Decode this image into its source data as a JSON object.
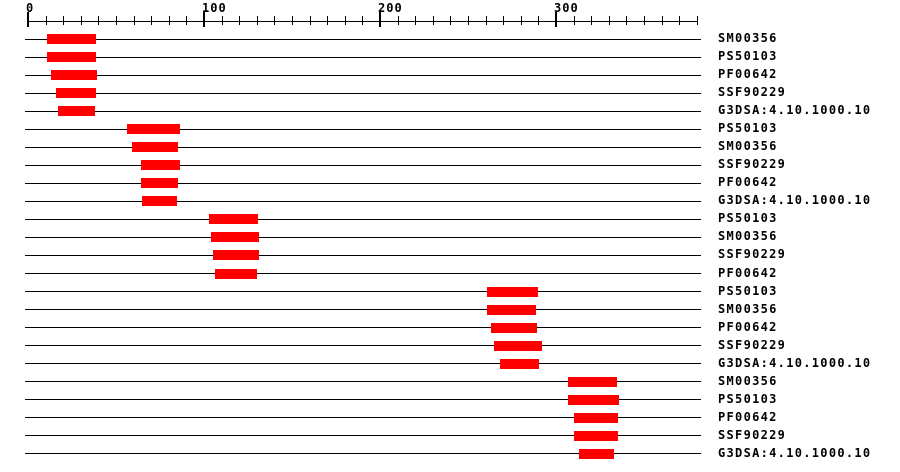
{
  "chart_data": {
    "type": "bar",
    "orientation": "horizontal",
    "title": "",
    "xlabel": "",
    "ylabel": "",
    "legend": "none",
    "grid": false,
    "axis": {
      "major_ticks": [
        0,
        100,
        200,
        300
      ],
      "minor_tick_interval": 10,
      "xlim": [
        0,
        382
      ]
    },
    "colors": {
      "bar": "#FF0000",
      "line": "#000000",
      "text": "#000000",
      "background": "#FFFFFF"
    },
    "rows": [
      {
        "label": "SM00356",
        "start": 11,
        "end": 39
      },
      {
        "label": "PS50103",
        "start": 11,
        "end": 39
      },
      {
        "label": "PF00642",
        "start": 13,
        "end": 39
      },
      {
        "label": "SSF90229",
        "start": 16,
        "end": 39
      },
      {
        "label": "G3DSA:4.10.1000.10",
        "start": 17,
        "end": 38
      },
      {
        "label": "PS50103",
        "start": 56,
        "end": 86
      },
      {
        "label": "SM00356",
        "start": 59,
        "end": 85
      },
      {
        "label": "SSF90229",
        "start": 64,
        "end": 86
      },
      {
        "label": "PF00642",
        "start": 64,
        "end": 85
      },
      {
        "label": "G3DSA:4.10.1000.10",
        "start": 65,
        "end": 85
      },
      {
        "label": "PS50103",
        "start": 103,
        "end": 131
      },
      {
        "label": "SM00356",
        "start": 104,
        "end": 131
      },
      {
        "label": "SSF90229",
        "start": 105,
        "end": 131
      },
      {
        "label": "PF00642",
        "start": 106,
        "end": 130
      },
      {
        "label": "PS50103",
        "start": 261,
        "end": 290
      },
      {
        "label": "SM00356",
        "start": 261,
        "end": 289
      },
      {
        "label": "PF00642",
        "start": 263,
        "end": 289
      },
      {
        "label": "SSF90229",
        "start": 265,
        "end": 292
      },
      {
        "label": "G3DSA:4.10.1000.10",
        "start": 268,
        "end": 290
      },
      {
        "label": "SM00356",
        "start": 307,
        "end": 335
      },
      {
        "label": "PS50103",
        "start": 307,
        "end": 336
      },
      {
        "label": "PF00642",
        "start": 310,
        "end": 335
      },
      {
        "label": "SSF90229",
        "start": 310,
        "end": 335
      },
      {
        "label": "G3DSA:4.10.1000.10",
        "start": 313,
        "end": 333
      }
    ]
  }
}
